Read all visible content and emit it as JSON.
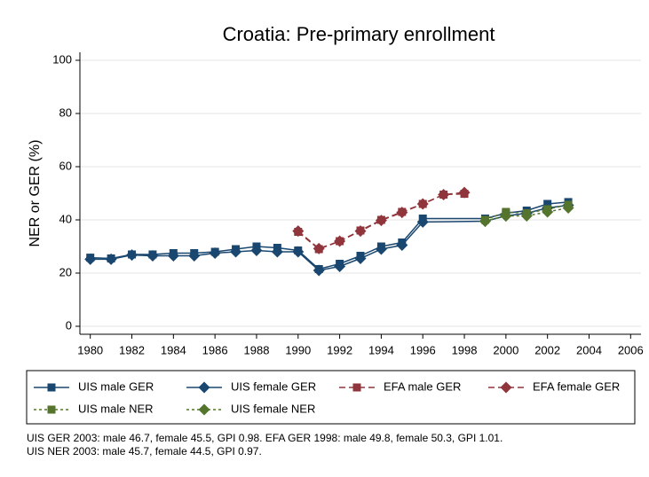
{
  "chart_data": {
    "type": "line",
    "title": "Croatia: Pre-primary enrollment",
    "ylabel": "NER or GER (%)",
    "xlim": [
      1979.5,
      2006.5
    ],
    "xticks": [
      1980,
      1982,
      1984,
      1986,
      1988,
      1990,
      1992,
      1994,
      1996,
      1998,
      2000,
      2002,
      2004,
      2006
    ],
    "ylim": [
      -3,
      103
    ],
    "yticks": [
      0,
      20,
      40,
      60,
      80,
      100
    ],
    "grid": true,
    "series": [
      {
        "name": "UIS male GER",
        "color": "#1a476f",
        "marker": "square",
        "dash": "solid",
        "x": [
          1980,
          1981,
          1982,
          1983,
          1984,
          1985,
          1986,
          1987,
          1988,
          1989,
          1990,
          1991,
          1992,
          1993,
          1994,
          1995,
          1996,
          1999,
          2000,
          2001,
          2002,
          2003
        ],
        "values": [
          25.8,
          25.5,
          27,
          27,
          27.5,
          27.5,
          28,
          29,
          30,
          29.5,
          28.5,
          21.5,
          23.5,
          26.5,
          30,
          31.5,
          40.5,
          40.5,
          42.5,
          43.5,
          46,
          46.7
        ]
      },
      {
        "name": "UIS female GER",
        "color": "#1a476f",
        "marker": "diamond",
        "dash": "solid",
        "x": [
          1980,
          1981,
          1982,
          1983,
          1984,
          1985,
          1986,
          1987,
          1988,
          1989,
          1990,
          1991,
          1992,
          1993,
          1994,
          1995,
          1996,
          1999,
          2000,
          2001,
          2002,
          2003
        ],
        "values": [
          25.2,
          25.2,
          26.8,
          26.5,
          26.5,
          26.5,
          27.5,
          28,
          28.5,
          28,
          28,
          21,
          22.5,
          25.5,
          29,
          30.5,
          39.2,
          39.5,
          41.5,
          42.5,
          44.5,
          45.5
        ]
      },
      {
        "name": "EFA male GER",
        "color": "#90353b",
        "marker": "square",
        "dash": "long",
        "x": [
          1990,
          1991,
          1992,
          1993,
          1994,
          1995,
          1996,
          1997,
          1998
        ],
        "values": [
          35.5,
          29,
          32,
          36,
          40,
          43,
          46,
          49.5,
          49.8
        ]
      },
      {
        "name": "EFA female GER",
        "color": "#90353b",
        "marker": "diamond",
        "dash": "long",
        "x": [
          1990,
          1991,
          1992,
          1993,
          1994,
          1995,
          1996,
          1997,
          1998
        ],
        "values": [
          35.8,
          29.2,
          32,
          35.8,
          39.8,
          42.8,
          46,
          49.5,
          50.3
        ]
      },
      {
        "name": "UIS male NER",
        "color": "#55752f",
        "marker": "square",
        "dash": "short",
        "x": [
          1999,
          2000,
          2001,
          2002,
          2003
        ],
        "values": [
          40,
          43,
          42.5,
          44,
          45.7
        ]
      },
      {
        "name": "UIS female NER",
        "color": "#55752f",
        "marker": "diamond",
        "dash": "short",
        "x": [
          1999,
          2000,
          2001,
          2002,
          2003
        ],
        "values": [
          39.5,
          41.5,
          41.5,
          43,
          44.5
        ]
      }
    ],
    "notes": [
      "UIS GER 2003: male 46.7, female 45.5, GPI 0.98. EFA GER 1998: male 49.8, female 50.3, GPI 1.01.",
      "UIS NER 2003: male 45.7, female 44.5, GPI 0.97."
    ]
  }
}
